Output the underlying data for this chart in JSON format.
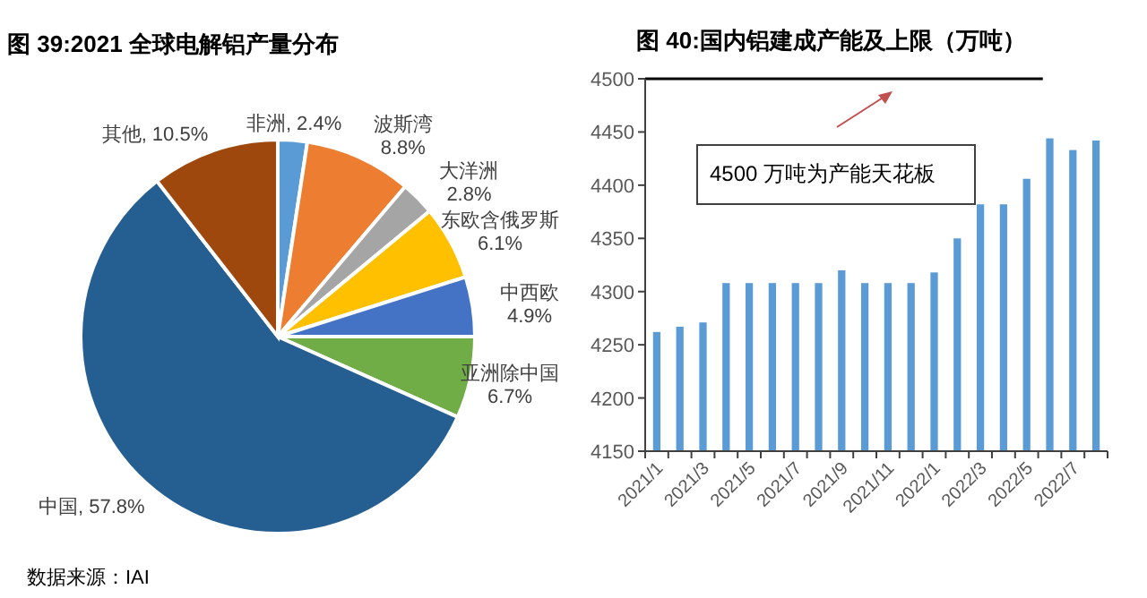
{
  "chart_data": [
    {
      "type": "pie",
      "title": "图 39:2021 全球电解铝产量分布",
      "categories": [
        "非洲",
        "波斯湾",
        "大洋洲",
        "东欧含俄罗斯",
        "中西欧",
        "亚洲除中国",
        "中国",
        "其他"
      ],
      "values": [
        2.4,
        8.8,
        2.8,
        6.1,
        4.9,
        6.7,
        57.8,
        10.5
      ],
      "value_labels": [
        "2.4%",
        "8.8%",
        "2.8%",
        "6.1%",
        "4.9%",
        "6.7%",
        "57.8%",
        "10.5%"
      ],
      "colors": [
        "#5b9bd5",
        "#ed7d31",
        "#a5a5a5",
        "#ffc000",
        "#4472c4",
        "#70ad47",
        "#255e91",
        "#9e480e"
      ],
      "annotations": [
        "数据来源：IAI"
      ]
    },
    {
      "type": "bar",
      "title": "图 40:国内铝建成产能及上限（万吨）",
      "categories": [
        "2021/1",
        null,
        "2021/3",
        null,
        "2021/5",
        null,
        "2021/7",
        null,
        "2021/9",
        null,
        "2021/11",
        null,
        "2022/1",
        null,
        "2022/3",
        null,
        "2022/5",
        null,
        "2022/7",
        null
      ],
      "values": [
        4262,
        4267,
        4271,
        4308,
        4308,
        4308,
        4308,
        4308,
        4320,
        4308,
        4308,
        4308,
        4318,
        4350,
        4382,
        4382,
        4406,
        4444,
        4433,
        4442
      ],
      "color": "#5b9bd5",
      "ylim": [
        4150,
        4500
      ],
      "yticks": [
        4150,
        4200,
        4250,
        4300,
        4350,
        4400,
        4450,
        4500
      ],
      "grid": false,
      "ref_lines": [
        {
          "axis": "y",
          "value": 4500,
          "color": "#000000"
        }
      ],
      "annotations": [
        "4500 万吨为产能天花板"
      ]
    }
  ]
}
